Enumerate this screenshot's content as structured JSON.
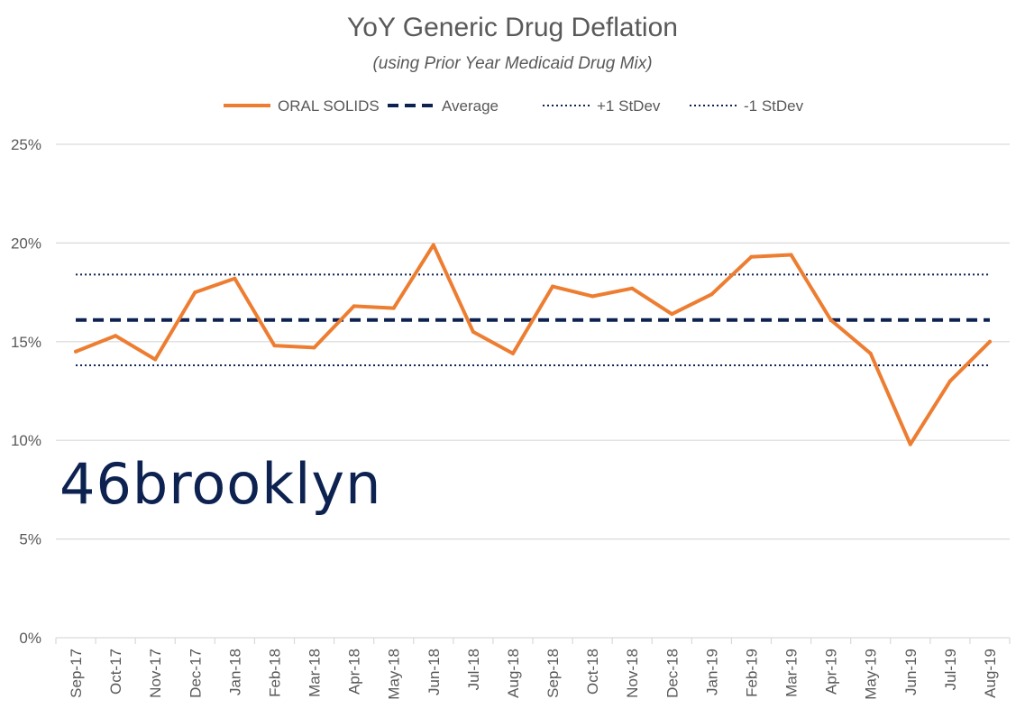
{
  "chart_data": {
    "type": "line",
    "title": "YoY Generic Drug Deflation",
    "subtitle": "(using Prior Year Medicaid Drug Mix)",
    "categories": [
      "Sep-17",
      "Oct-17",
      "Nov-17",
      "Dec-17",
      "Jan-18",
      "Feb-18",
      "Mar-18",
      "Apr-18",
      "May-18",
      "Jun-18",
      "Jul-18",
      "Aug-18",
      "Sep-18",
      "Oct-18",
      "Nov-18",
      "Dec-18",
      "Jan-19",
      "Feb-19",
      "Mar-19",
      "Apr-19",
      "May-19",
      "Jun-19",
      "Jul-19",
      "Aug-19"
    ],
    "series": [
      {
        "name": "ORAL SOLIDS",
        "color": "#ed7d31",
        "style": "solid",
        "values": [
          14.5,
          15.3,
          14.1,
          17.5,
          18.2,
          14.8,
          14.7,
          16.8,
          16.7,
          19.9,
          15.5,
          14.4,
          17.8,
          17.3,
          17.7,
          16.4,
          17.4,
          19.3,
          19.4,
          16.1,
          14.4,
          9.8,
          13.0,
          15.0
        ]
      },
      {
        "name": "Average",
        "color": "#0d2250",
        "style": "dashed",
        "constant": 16.1
      },
      {
        "name": "+1 StDev",
        "color": "#0d2250",
        "style": "dotted",
        "constant": 18.4
      },
      {
        "name": "-1 StDev",
        "color": "#0d2250",
        "style": "dotted",
        "constant": 13.8
      }
    ],
    "yticks": [
      "0%",
      "5%",
      "10%",
      "15%",
      "20%",
      "25%"
    ],
    "ylim": [
      0,
      25
    ],
    "grid": true,
    "legend_position": "top"
  },
  "watermark": "46brooklyn"
}
